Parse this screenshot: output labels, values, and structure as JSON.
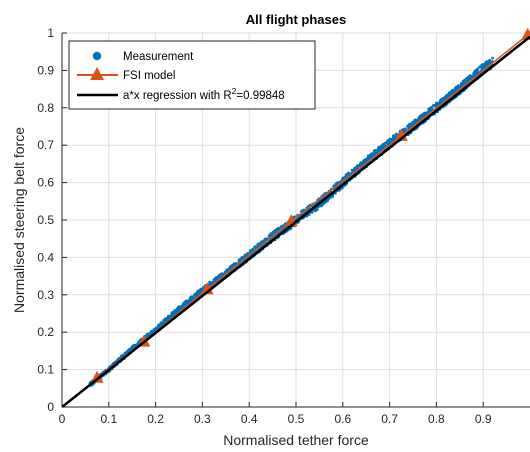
{
  "chart_data": {
    "type": "scatter",
    "title": "All flight phases",
    "xlabel": "Normalised tether force",
    "ylabel": "Normalised steering belt force",
    "xlim": [
      0,
      1
    ],
    "ylim": [
      0,
      1
    ],
    "xticks": [
      "0",
      "0.1",
      "0.2",
      "0.3",
      "0.4",
      "0.5",
      "0.6",
      "0.7",
      "0.8",
      "0.9"
    ],
    "yticks": [
      "0",
      "0.1",
      "0.2",
      "0.3",
      "0.4",
      "0.5",
      "0.6",
      "0.7",
      "0.8",
      "0.9",
      "1"
    ],
    "grid": true,
    "legend_position": "top-left",
    "series": [
      {
        "name": "Measurement",
        "kind": "scatter",
        "color": "#0072BD",
        "x_range": [
          0.06,
          0.92
        ],
        "description_points": [
          [
            0.06,
            0.06
          ],
          [
            0.1,
            0.1
          ],
          [
            0.15,
            0.155
          ],
          [
            0.2,
            0.205
          ],
          [
            0.25,
            0.26
          ],
          [
            0.3,
            0.31
          ],
          [
            0.35,
            0.355
          ],
          [
            0.4,
            0.405
          ],
          [
            0.45,
            0.455
          ],
          [
            0.5,
            0.5
          ],
          [
            0.55,
            0.545
          ],
          [
            0.6,
            0.6
          ],
          [
            0.65,
            0.655
          ],
          [
            0.7,
            0.705
          ],
          [
            0.75,
            0.75
          ],
          [
            0.8,
            0.8
          ],
          [
            0.85,
            0.85
          ],
          [
            0.9,
            0.905
          ],
          [
            0.92,
            0.92
          ]
        ]
      },
      {
        "name": "FSI model",
        "kind": "line-marker",
        "color": "#D95319",
        "marker": "triangle",
        "points": [
          [
            0.075,
            0.078
          ],
          [
            0.175,
            0.175
          ],
          [
            0.31,
            0.315
          ],
          [
            0.49,
            0.497
          ],
          [
            0.725,
            0.725
          ],
          [
            0.995,
            0.995
          ]
        ]
      },
      {
        "name": "a*x regression with R",
        "name_superscript": "2",
        "name_suffix": "=0.99848",
        "kind": "line",
        "color": "#000000",
        "slope": 0.99,
        "x_range": [
          0,
          1
        ]
      }
    ]
  }
}
